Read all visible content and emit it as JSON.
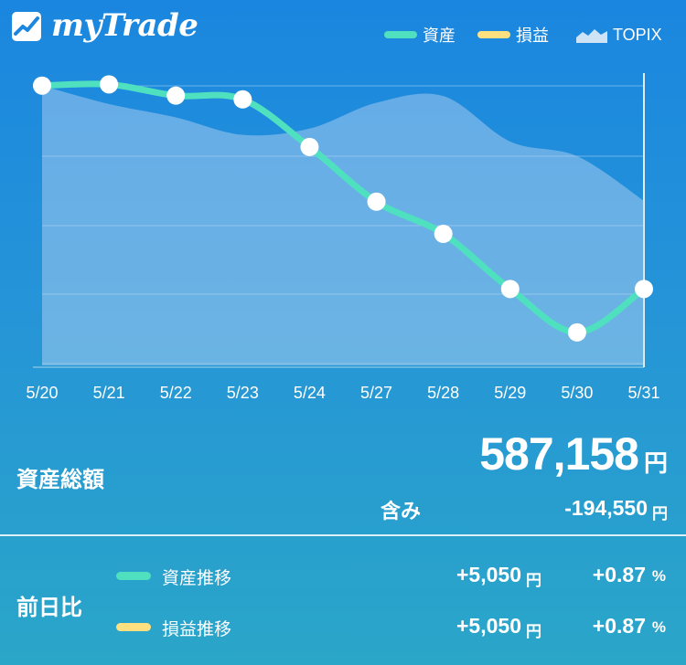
{
  "app": {
    "title": "myTrade"
  },
  "legend": [
    {
      "label": "資産",
      "color": "#4fe0c0",
      "icon": "line-swatch"
    },
    {
      "label": "損益",
      "color": "#ffe080",
      "icon": "line-swatch"
    },
    {
      "label": "TOPIX",
      "color": "#cfe3f7",
      "icon": "mountain-area-icon"
    }
  ],
  "chart_data": {
    "type": "line",
    "categories": [
      "5/20",
      "5/21",
      "5/22",
      "5/23",
      "5/24",
      "5/27",
      "5/28",
      "5/29",
      "5/30",
      "5/31"
    ],
    "series": [
      {
        "name": "資産",
        "color": "#4fe0c0",
        "values": [
          97,
          97.3,
          94.6,
          93.7,
          82.3,
          69.2,
          61.5,
          48.3,
          37.9,
          48.3
        ]
      },
      {
        "name": "TOPIX",
        "color": "#cfe3f7",
        "type": "area",
        "values": [
          97,
          92.6,
          89.4,
          85.2,
          86.7,
          92.9,
          94.5,
          83.6,
          80.1,
          69.4
        ]
      }
    ],
    "ylim": [
      30,
      100
    ],
    "grid": true,
    "legend_position": "top-right"
  },
  "summary": {
    "label": "資産総額",
    "total": "587,158",
    "total_unit": "円",
    "included_label": "含み",
    "included_value": "-194,550",
    "included_unit": "円"
  },
  "comparison": {
    "label": "前日比",
    "rows": [
      {
        "name": "資産推移",
        "color": "#4fe0c0",
        "amount": "+5,050",
        "amount_unit": "円",
        "percent": "+0.87",
        "percent_unit": "%"
      },
      {
        "name": "損益推移",
        "color": "#ffe080",
        "amount": "+5,050",
        "amount_unit": "円",
        "percent": "+0.87",
        "percent_unit": "%"
      }
    ]
  }
}
